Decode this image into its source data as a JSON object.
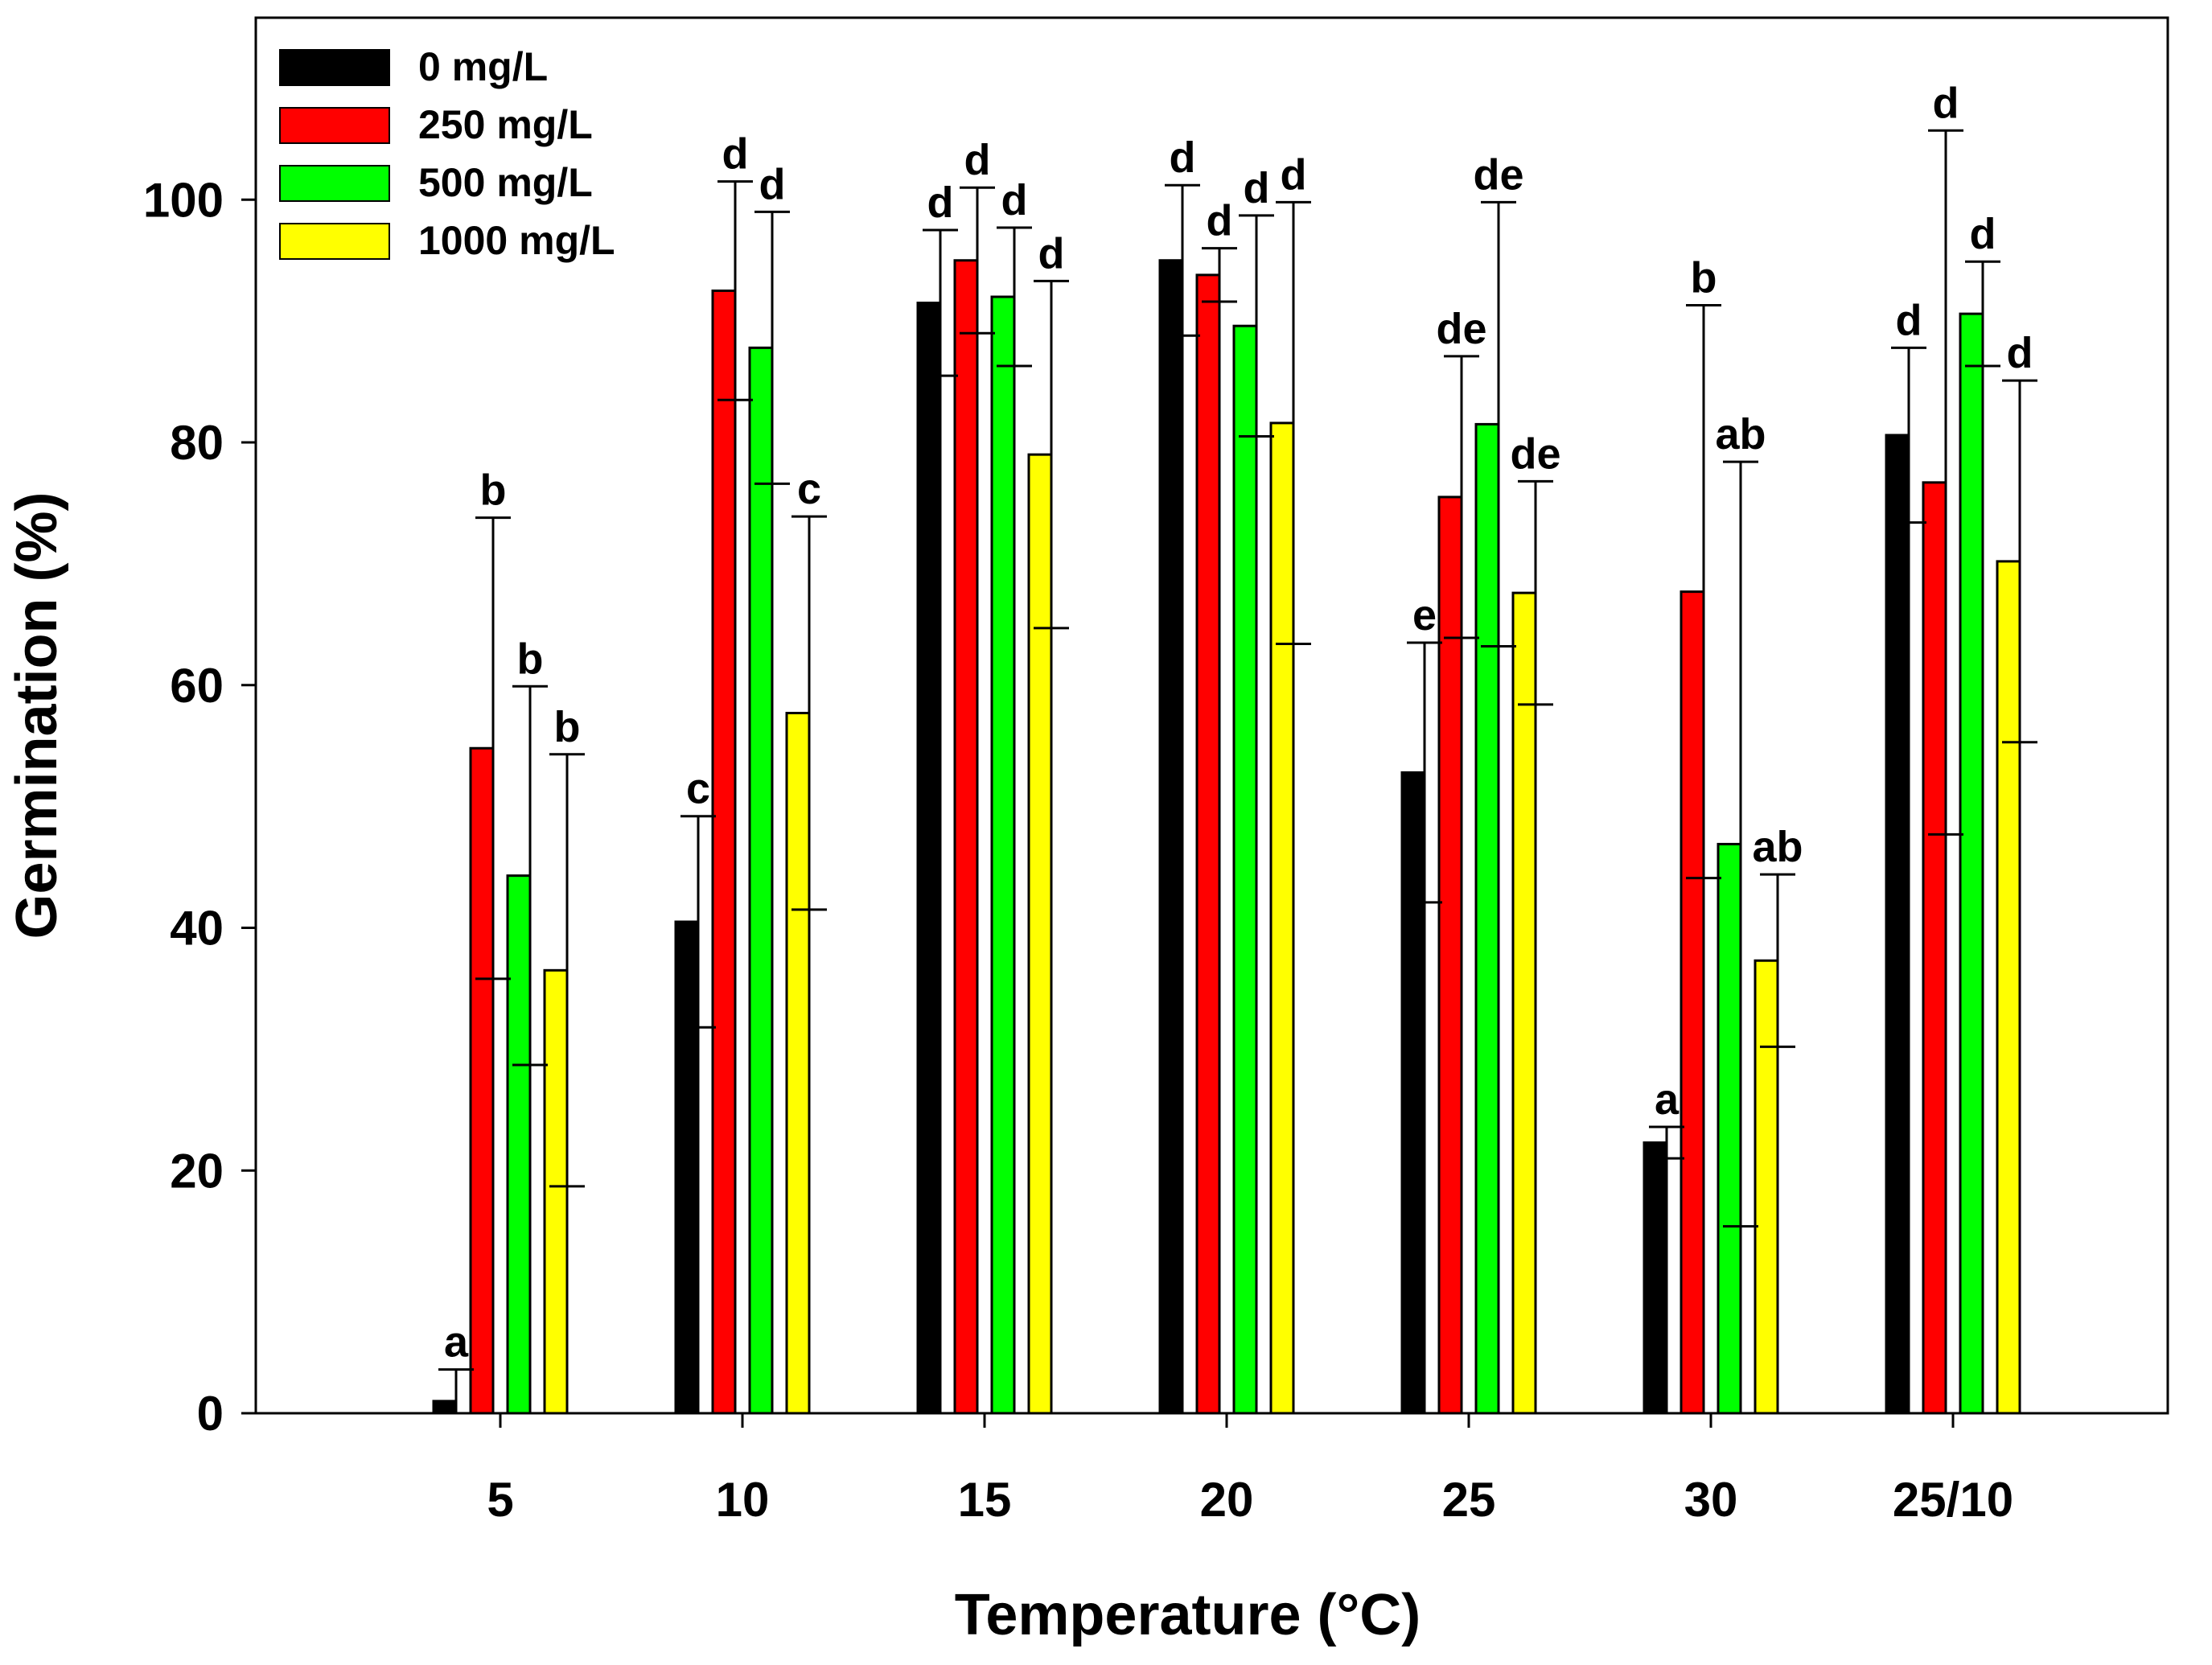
{
  "chart_data": {
    "type": "bar",
    "xlabel": "Temperature (°C)",
    "ylabel": "Germination (%)",
    "ylim": [
      0,
      115
    ],
    "yticks": [
      0,
      20,
      40,
      60,
      80,
      100
    ],
    "grid": false,
    "legend_position": "top-left",
    "categories": [
      "5",
      "10",
      "15",
      "20",
      "25",
      "30",
      "25/10"
    ],
    "series": [
      {
        "name": "0 mg/L",
        "color": "#000000",
        "values": [
          1,
          40.5,
          91.5,
          95,
          52.8,
          22.3,
          80.6
        ],
        "error": [
          2.6,
          8.7,
          6,
          6.2,
          10.7,
          1.3,
          7.2
        ],
        "letters": [
          "a",
          "c",
          "d",
          "d",
          "e",
          "a",
          "d"
        ]
      },
      {
        "name": "250 mg/L",
        "color": "#ff0000",
        "values": [
          54.8,
          92.5,
          95,
          93.8,
          75.5,
          67.7,
          76.7
        ],
        "error": [
          19,
          9,
          6,
          2.2,
          11.6,
          23.6,
          29
        ],
        "letters": [
          "b",
          "d",
          "d",
          "d",
          "de",
          "b",
          "d"
        ]
      },
      {
        "name": "500 mg/L",
        "color": "#00ff00",
        "values": [
          44.3,
          87.8,
          92,
          89.6,
          81.5,
          46.9,
          90.6
        ],
        "error": [
          15.6,
          11.2,
          5.7,
          9.1,
          18.3,
          31.5,
          4.3
        ],
        "letters": [
          "b",
          "d",
          "d",
          "d",
          "de",
          "ab",
          "d"
        ]
      },
      {
        "name": "1000 mg/L",
        "color": "#ffff00",
        "values": [
          36.5,
          57.7,
          79,
          81.6,
          67.6,
          37.3,
          70.2
        ],
        "error": [
          17.8,
          16.2,
          14.3,
          18.2,
          9.2,
          7.1,
          14.9
        ],
        "letters": [
          "b",
          "c",
          "d",
          "d",
          "de",
          "ab",
          "d"
        ]
      }
    ]
  }
}
